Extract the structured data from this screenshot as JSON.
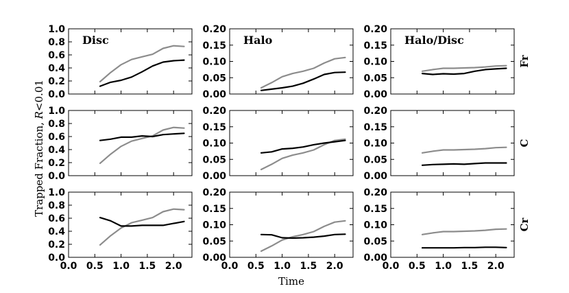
{
  "chart_data": {
    "type": "line",
    "xlabel": "Time",
    "ylabel": "Trapped Fraction, R<0.01",
    "ylabel_main": "Trapped Fraction, ",
    "ylabel_var": "R",
    "ylabel_rest": "<0.01",
    "grid": false,
    "xlim": [
      0.0,
      2.35
    ],
    "xticks": [
      "0.0",
      "0.5",
      "1.0",
      "1.5",
      "2.0"
    ],
    "columns": [
      {
        "title": "Disc",
        "ylim": [
          0.0,
          1.0
        ],
        "yticks": [
          "0.0",
          "0.2",
          "0.4",
          "0.6",
          "0.8",
          "1.0"
        ]
      },
      {
        "title": "Halo",
        "ylim": [
          0.0,
          0.2
        ],
        "yticks": [
          "0.00",
          "0.05",
          "0.10",
          "0.15",
          "0.20"
        ]
      },
      {
        "title": "Halo/Disc",
        "ylim": [
          0.0,
          0.2
        ],
        "yticks": [
          "0.00",
          "0.05",
          "0.10",
          "0.15",
          "0.20"
        ]
      }
    ],
    "rows": [
      "Fr",
      "C",
      "Cr"
    ],
    "x": [
      0.6,
      0.8,
      1.0,
      1.2,
      1.4,
      1.6,
      1.8,
      2.0,
      2.2
    ],
    "colors": {
      "black_series": "#000000",
      "gray_series": "#8c8c8c"
    },
    "panels": [
      {
        "row": "Fr",
        "column": "Disc",
        "series": [
          {
            "color": "gray",
            "values": [
              0.19,
              0.33,
              0.45,
              0.53,
              0.57,
              0.61,
              0.7,
              0.74,
              0.73
            ]
          },
          {
            "color": "black",
            "values": [
              0.12,
              0.18,
              0.21,
              0.26,
              0.34,
              0.43,
              0.49,
              0.51,
              0.52
            ]
          }
        ]
      },
      {
        "row": "Fr",
        "column": "Halo",
        "series": [
          {
            "color": "gray",
            "values": [
              0.019,
              0.035,
              0.053,
              0.063,
              0.07,
              0.079,
              0.095,
              0.108,
              0.112
            ]
          },
          {
            "color": "black",
            "values": [
              0.011,
              0.015,
              0.019,
              0.024,
              0.033,
              0.046,
              0.06,
              0.066,
              0.067
            ]
          }
        ]
      },
      {
        "row": "Fr",
        "column": "Halo/Disc",
        "series": [
          {
            "color": "gray",
            "values": [
              0.07,
              0.075,
              0.079,
              0.079,
              0.08,
              0.081,
              0.083,
              0.086,
              0.087
            ]
          },
          {
            "color": "black",
            "values": [
              0.063,
              0.06,
              0.062,
              0.061,
              0.063,
              0.07,
              0.075,
              0.077,
              0.079
            ]
          }
        ]
      },
      {
        "row": "C",
        "column": "Disc",
        "series": [
          {
            "color": "gray",
            "values": [
              0.19,
              0.33,
              0.45,
              0.53,
              0.57,
              0.61,
              0.7,
              0.74,
              0.73
            ]
          },
          {
            "color": "black",
            "values": [
              0.54,
              0.56,
              0.59,
              0.59,
              0.61,
              0.6,
              0.63,
              0.64,
              0.65
            ]
          }
        ]
      },
      {
        "row": "C",
        "column": "Halo",
        "series": [
          {
            "color": "gray",
            "values": [
              0.019,
              0.035,
              0.053,
              0.063,
              0.07,
              0.079,
              0.095,
              0.108,
              0.112
            ]
          },
          {
            "color": "black",
            "values": [
              0.07,
              0.073,
              0.082,
              0.084,
              0.088,
              0.095,
              0.1,
              0.104,
              0.108
            ]
          }
        ]
      },
      {
        "row": "C",
        "column": "Halo/Disc",
        "series": [
          {
            "color": "gray",
            "values": [
              0.07,
              0.075,
              0.079,
              0.079,
              0.08,
              0.081,
              0.083,
              0.086,
              0.087
            ]
          },
          {
            "color": "black",
            "values": [
              0.032,
              0.034,
              0.035,
              0.036,
              0.035,
              0.037,
              0.039,
              0.039,
              0.039
            ]
          }
        ]
      },
      {
        "row": "Cr",
        "column": "Disc",
        "series": [
          {
            "color": "gray",
            "values": [
              0.19,
              0.33,
              0.45,
              0.53,
              0.57,
              0.61,
              0.7,
              0.74,
              0.73
            ]
          },
          {
            "color": "black",
            "values": [
              0.61,
              0.56,
              0.48,
              0.48,
              0.49,
              0.49,
              0.49,
              0.52,
              0.55
            ]
          }
        ]
      },
      {
        "row": "Cr",
        "column": "Halo",
        "series": [
          {
            "color": "gray",
            "values": [
              0.019,
              0.035,
              0.053,
              0.063,
              0.07,
              0.079,
              0.095,
              0.108,
              0.112
            ]
          },
          {
            "color": "black",
            "values": [
              0.07,
              0.069,
              0.06,
              0.059,
              0.06,
              0.062,
              0.065,
              0.07,
              0.071
            ]
          }
        ]
      },
      {
        "row": "Cr",
        "column": "Halo/Disc",
        "series": [
          {
            "color": "gray",
            "values": [
              0.07,
              0.075,
              0.079,
              0.079,
              0.08,
              0.081,
              0.083,
              0.086,
              0.087
            ]
          },
          {
            "color": "black",
            "values": [
              0.029,
              0.029,
              0.029,
              0.029,
              0.03,
              0.03,
              0.031,
              0.031,
              0.03
            ]
          }
        ]
      }
    ]
  }
}
